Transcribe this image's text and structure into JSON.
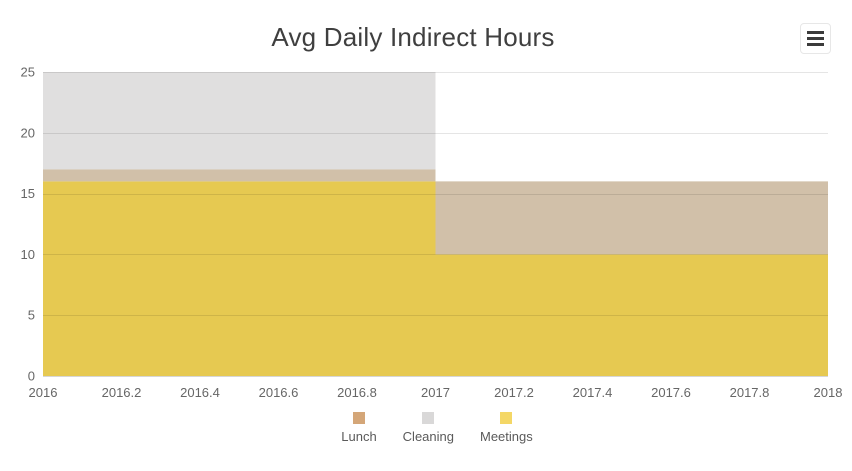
{
  "header": {
    "title": "Avg Daily Indirect Hours",
    "export_menu_icon": "hamburger-icon"
  },
  "chart_data": {
    "type": "area",
    "stacking": "normal",
    "step": true,
    "title": "Avg Daily Indirect Hours",
    "xlabel": "",
    "ylabel": "",
    "x": [
      2016,
      2017
    ],
    "x_extend_to": 2018,
    "series": [
      {
        "name": "Meetings",
        "values": [
          16,
          10
        ],
        "area_color": "#e6c951"
      },
      {
        "name": "Lunch",
        "values": [
          1,
          6
        ],
        "area_color": "#d1c0a9"
      },
      {
        "name": "Cleaning",
        "values": [
          8,
          0
        ],
        "area_color": "#e0dfdf"
      }
    ],
    "stack_order_bottom_to_top": [
      "Meetings",
      "Lunch",
      "Cleaning"
    ],
    "xlim": [
      2016,
      2018
    ],
    "ylim": [
      0,
      25
    ],
    "x_ticks": [
      2016,
      2016.2,
      2016.4,
      2016.6,
      2016.8,
      2017,
      2017.2,
      2017.4,
      2017.6,
      2017.8,
      2018
    ],
    "x_tick_labels": [
      "2016",
      "2016.2",
      "2016.4",
      "2016.6",
      "2016.8",
      "2017",
      "2017.2",
      "2017.4",
      "2017.6",
      "2017.8",
      "2018"
    ],
    "y_ticks": [
      0,
      5,
      10,
      15,
      20,
      25
    ],
    "y_tick_labels": [
      "0",
      "5",
      "10",
      "15",
      "20",
      "25"
    ],
    "grid": "horizontal",
    "grid_color": "rgba(0,0,0,0.10)",
    "axis_line_color": "#d6d6d6",
    "tick_label_color": "#666666",
    "legend_position": "bottom"
  },
  "legend": {
    "items": [
      {
        "label": "Lunch",
        "color": "#d4a678"
      },
      {
        "label": "Cleaning",
        "color": "#d9d8d8"
      },
      {
        "label": "Meetings",
        "color": "#f4d766"
      }
    ]
  }
}
